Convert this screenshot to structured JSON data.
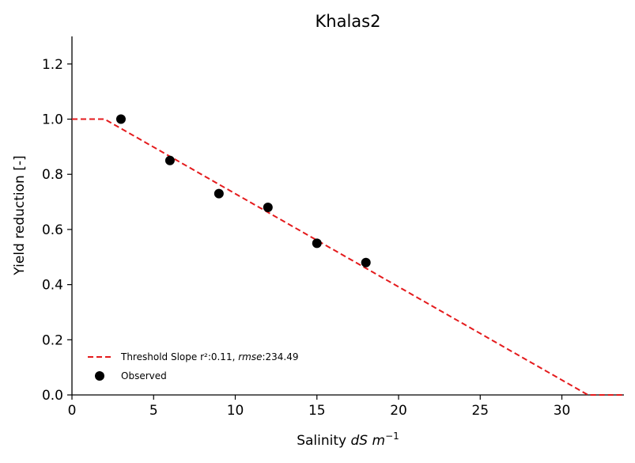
{
  "chart_data": {
    "type": "scatter",
    "title": "Khalas2",
    "xlabel": {
      "prefix": "Salinity ",
      "italic": "dS m",
      "superscript": "−1"
    },
    "ylabel": "Yield reduction [-]",
    "xlim": [
      0,
      33.8
    ],
    "ylim": [
      0,
      1.3
    ],
    "xticks": [
      0,
      5,
      10,
      15,
      20,
      25,
      30
    ],
    "yticks": [
      0.0,
      0.2,
      0.4,
      0.6,
      0.8,
      1.0,
      1.2
    ],
    "xtick_labels": [
      "0",
      "5",
      "10",
      "15",
      "20",
      "25",
      "30"
    ],
    "ytick_labels": [
      "0.0",
      "0.2",
      "0.4",
      "0.6",
      "0.8",
      "1.0",
      "1.2"
    ],
    "grid": false,
    "legend_position": "lower-left",
    "series": [
      {
        "name": "Threshold Slope",
        "kind": "line",
        "style": "dashed",
        "color": "#e41a1c",
        "x": [
          0,
          2,
          31.6,
          33.8
        ],
        "y": [
          1.0,
          1.0,
          0.0,
          0.0
        ]
      },
      {
        "name": "Observed",
        "kind": "scatter",
        "color": "#000000",
        "x": [
          3,
          6,
          9,
          12,
          15,
          18
        ],
        "y": [
          1.0,
          0.85,
          0.73,
          0.68,
          0.55,
          0.48
        ]
      }
    ],
    "legend": [
      {
        "series": "Threshold Slope",
        "label_parts": [
          {
            "text": "Threshold Slope ",
            "italic": false
          },
          {
            "text": "r²",
            "italic": false
          },
          {
            "text": ":0.11, ",
            "italic": false
          },
          {
            "text": "rmse",
            "italic": true
          },
          {
            "text": ":234.49",
            "italic": false
          }
        ]
      },
      {
        "series": "Observed",
        "label_parts": [
          {
            "text": "Observed",
            "italic": false
          }
        ]
      }
    ]
  }
}
